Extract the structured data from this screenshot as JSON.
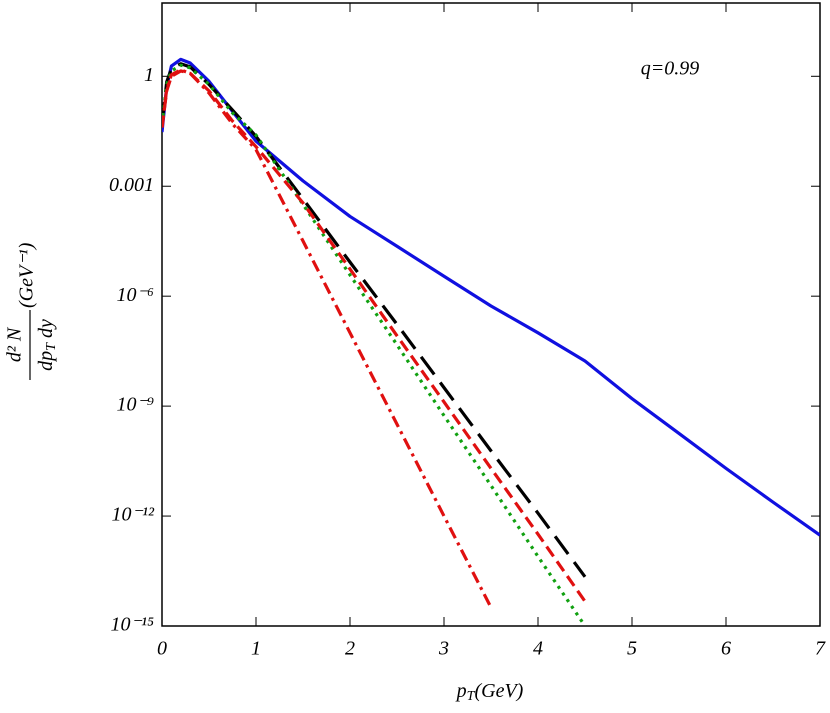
{
  "chart_data": {
    "type": "line",
    "annotation": "q=0.99",
    "x_label": [
      "p",
      "T",
      "(GeV)"
    ],
    "y_label": {
      "numerator": "d² N",
      "denominator": [
        "dp",
        "T",
        " dy"
      ],
      "unit": "(GeV⁻¹)"
    },
    "log_y": true,
    "xlim": [
      0,
      7
    ],
    "xticks": [
      0,
      1,
      2,
      3,
      4,
      5,
      6,
      7
    ],
    "ylim": [
      1e-15,
      100
    ],
    "yticks": [
      {
        "value": 1e-15,
        "label": "10⁻¹⁵"
      },
      {
        "value": 1e-12,
        "label": "10⁻¹²"
      },
      {
        "value": 1e-09,
        "label": "10⁻⁹"
      },
      {
        "value": 1e-06,
        "label": "10⁻⁶"
      },
      0.001,
      1
    ],
    "x": [
      0,
      0.05,
      0.1,
      0.2,
      0.3,
      0.5,
      0.75,
      1,
      1.5,
      2,
      2.5,
      3,
      3.5,
      4,
      4.5,
      5,
      5.5,
      6,
      6.5,
      7
    ],
    "series": [
      {
        "color": "#1010e0",
        "style": "solid",
        "values": [
          0.03,
          0.53,
          1.9,
          2.9,
          2.3,
          0.73,
          0.11,
          0.017,
          0.0014,
          0.00015,
          2.3e-05,
          3.5e-06,
          5.4e-07,
          1e-07,
          1.7e-08,
          1.6e-09,
          1.8e-10,
          2e-11,
          2.4e-12,
          3e-13
        ]
      },
      {
        "color": "#000000",
        "style": "longdash",
        "values": [
          0.05,
          0.7,
          1.6,
          2.2,
          1.8,
          0.6,
          0.12,
          0.023,
          0.00045,
          8.5e-06,
          1.7e-07,
          3.2e-09,
          6e-11,
          1.2e-12,
          2.2e-14,
          null,
          null,
          null,
          null,
          null
        ]
      },
      {
        "color": "#10a010",
        "style": "dotted",
        "values": [
          0.05,
          0.6,
          1.4,
          2.0,
          1.7,
          0.6,
          0.1,
          0.025,
          0.00032,
          3.8e-06,
          4.7e-08,
          5.5e-10,
          6.8e-12,
          7.9e-14,
          1e-15,
          null,
          null,
          null,
          null,
          null
        ]
      },
      {
        "color": "#e01010",
        "style": "dashed",
        "values": [
          0.04,
          0.4,
          1.0,
          1.4,
          1.2,
          0.4,
          0.06,
          0.012,
          0.00035,
          5.5e-06,
          8.3e-08,
          1.3e-09,
          2e-11,
          3.2e-13,
          4.7e-15,
          null,
          null,
          null,
          null,
          null
        ]
      },
      {
        "color": "#e01010",
        "style": "dashdot",
        "values": [
          0.04,
          0.45,
          1.1,
          1.5,
          1.2,
          0.35,
          0.05,
          0.01,
          3.2e-05,
          1e-07,
          3.2e-10,
          1e-12,
          3.2e-15,
          null,
          null,
          null,
          null,
          null,
          null,
          null
        ]
      }
    ]
  }
}
